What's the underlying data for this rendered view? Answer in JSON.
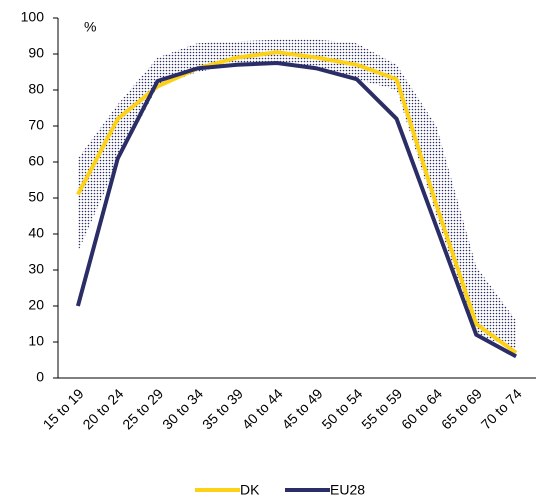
{
  "chart_data": {
    "type": "line",
    "y_label": "%",
    "categories": [
      "15 to 19",
      "20 to 24",
      "25 to 29",
      "30 to 34",
      "35 to 39",
      "40 to 44",
      "45 to 49",
      "50 to 54",
      "55 to 59",
      "60 to 64",
      "65 to 69",
      "70 to 74"
    ],
    "series": [
      {
        "name": "DK",
        "color": "#fcd116",
        "values": [
          51,
          72,
          81,
          86,
          89,
          90.5,
          89,
          87,
          83,
          48,
          15,
          7
        ]
      },
      {
        "name": "EU28",
        "color": "#2b2d66",
        "values": [
          20,
          61,
          82.5,
          86,
          87,
          87.5,
          86,
          83,
          72,
          42,
          12,
          6
        ]
      }
    ],
    "band": {
      "color": "#2b2d66",
      "upper": [
        61,
        76,
        89,
        93,
        93.5,
        94,
        94,
        93,
        87,
        70,
        31,
        16
      ],
      "lower": [
        35,
        60,
        81,
        85,
        87,
        87,
        86,
        83,
        80,
        45,
        12,
        8
      ]
    },
    "ylim": [
      0,
      100
    ],
    "yticks": [
      0,
      10,
      20,
      30,
      40,
      50,
      60,
      70,
      80,
      90,
      100
    ],
    "legend": "bottom"
  }
}
